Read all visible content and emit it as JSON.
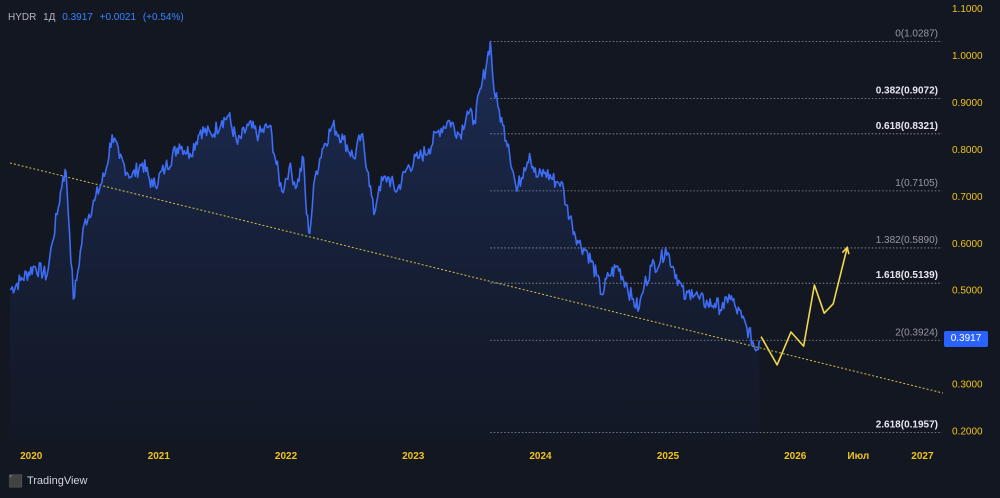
{
  "header": {
    "symbol": "HYDR",
    "interval": "1Д",
    "last": "0.3917",
    "change": "+0.0021",
    "change_pct": "(+0.54%)"
  },
  "price_tag": "0.3917",
  "brand": "TradingView",
  "colors": {
    "background": "#131722",
    "price_line": "#2962ff",
    "area_fill": "#1c2a4d",
    "axis_text": "#f0c419",
    "fib_line": "#9598a1",
    "trendline": "#d4c04a",
    "projection": "#f2d84a"
  },
  "chart_data": {
    "type": "line",
    "title": "",
    "xlabel": "",
    "ylabel": "",
    "x_ticks": [
      "2020",
      "2021",
      "2022",
      "2023",
      "2024",
      "2025",
      "2026",
      "Июл",
      "2027"
    ],
    "y_ticks": [
      "1.1000",
      "1.0000",
      "0.9000",
      "0.8000",
      "0.7000",
      "0.6000",
      "0.5000",
      "0.4000",
      "0.3000",
      "0.2000"
    ],
    "ylim": [
      0.18,
      1.1
    ],
    "xlim": [
      "2019-11-01",
      "2027-03-01"
    ],
    "grid": false,
    "series": [
      {
        "kind": "price",
        "points": [
          [
            "2019-11-01",
            0.5
          ],
          [
            "2019-12-01",
            0.52
          ],
          [
            "2020-01-10",
            0.55
          ],
          [
            "2020-02-15",
            0.53
          ],
          [
            "2020-03-01",
            0.6
          ],
          [
            "2020-03-15",
            0.66
          ],
          [
            "2020-04-01",
            0.74
          ],
          [
            "2020-04-10",
            0.75
          ],
          [
            "2020-04-20",
            0.62
          ],
          [
            "2020-05-01",
            0.48
          ],
          [
            "2020-05-10",
            0.52
          ],
          [
            "2020-06-01",
            0.64
          ],
          [
            "2020-07-01",
            0.69
          ],
          [
            "2020-08-01",
            0.75
          ],
          [
            "2020-08-20",
            0.83
          ],
          [
            "2020-09-10",
            0.78
          ],
          [
            "2020-10-15",
            0.74
          ],
          [
            "2020-11-15",
            0.77
          ],
          [
            "2020-12-15",
            0.72
          ],
          [
            "2021-01-20",
            0.76
          ],
          [
            "2021-03-01",
            0.81
          ],
          [
            "2021-04-01",
            0.79
          ],
          [
            "2021-05-01",
            0.84
          ],
          [
            "2021-06-01",
            0.83
          ],
          [
            "2021-07-01",
            0.86
          ],
          [
            "2021-07-20",
            0.87
          ],
          [
            "2021-08-15",
            0.81
          ],
          [
            "2021-09-15",
            0.85
          ],
          [
            "2021-10-15",
            0.83
          ],
          [
            "2021-11-15",
            0.85
          ],
          [
            "2021-12-01",
            0.78
          ],
          [
            "2021-12-20",
            0.71
          ],
          [
            "2022-01-10",
            0.76
          ],
          [
            "2022-02-01",
            0.72
          ],
          [
            "2022-02-20",
            0.78
          ],
          [
            "2022-03-01",
            0.66
          ],
          [
            "2022-03-10",
            0.62
          ],
          [
            "2022-03-25",
            0.74
          ],
          [
            "2022-04-15",
            0.8
          ],
          [
            "2022-05-15",
            0.85
          ],
          [
            "2022-06-15",
            0.82
          ],
          [
            "2022-07-15",
            0.78
          ],
          [
            "2022-08-05",
            0.83
          ],
          [
            "2022-08-25",
            0.75
          ],
          [
            "2022-09-10",
            0.66
          ],
          [
            "2022-09-25",
            0.72
          ],
          [
            "2022-10-20",
            0.74
          ],
          [
            "2022-11-15",
            0.71
          ],
          [
            "2022-12-15",
            0.76
          ],
          [
            "2023-01-15",
            0.78
          ],
          [
            "2023-02-15",
            0.8
          ],
          [
            "2023-03-15",
            0.84
          ],
          [
            "2023-04-15",
            0.86
          ],
          [
            "2023-05-15",
            0.83
          ],
          [
            "2023-06-05",
            0.88
          ],
          [
            "2023-06-25",
            0.86
          ],
          [
            "2023-07-15",
            0.93
          ],
          [
            "2023-08-01",
            0.99
          ],
          [
            "2023-08-10",
            1.0287
          ],
          [
            "2023-08-20",
            0.93
          ],
          [
            "2023-09-01",
            0.89
          ],
          [
            "2023-09-15",
            0.85
          ],
          [
            "2023-10-01",
            0.81
          ],
          [
            "2023-10-15",
            0.75
          ],
          [
            "2023-10-25",
            0.71
          ],
          [
            "2023-11-15",
            0.76
          ],
          [
            "2023-12-01",
            0.79
          ],
          [
            "2023-12-20",
            0.74
          ],
          [
            "2024-01-15",
            0.75
          ],
          [
            "2024-02-15",
            0.73
          ],
          [
            "2024-03-01",
            0.73
          ],
          [
            "2024-03-15",
            0.68
          ],
          [
            "2024-04-01",
            0.64
          ],
          [
            "2024-04-20",
            0.6
          ],
          [
            "2024-05-15",
            0.58
          ],
          [
            "2024-06-10",
            0.53
          ],
          [
            "2024-06-25",
            0.49
          ],
          [
            "2024-07-15",
            0.53
          ],
          [
            "2024-08-10",
            0.55
          ],
          [
            "2024-09-05",
            0.51
          ],
          [
            "2024-09-20",
            0.48
          ],
          [
            "2024-10-10",
            0.46
          ],
          [
            "2024-10-25",
            0.51
          ],
          [
            "2024-11-15",
            0.55
          ],
          [
            "2024-12-10",
            0.56
          ],
          [
            "2024-12-25",
            0.59
          ],
          [
            "2025-01-15",
            0.55
          ],
          [
            "2025-02-01",
            0.52
          ],
          [
            "2025-02-20",
            0.48
          ],
          [
            "2025-03-10",
            0.5
          ],
          [
            "2025-04-01",
            0.48
          ],
          [
            "2025-04-25",
            0.47
          ],
          [
            "2025-05-15",
            0.47
          ],
          [
            "2025-06-10",
            0.46
          ],
          [
            "2025-06-25",
            0.49
          ],
          [
            "2025-07-15",
            0.46
          ],
          [
            "2025-08-01",
            0.44
          ],
          [
            "2025-08-15",
            0.42
          ],
          [
            "2025-09-01",
            0.39
          ],
          [
            "2025-09-10",
            0.37
          ],
          [
            "2025-09-20",
            0.3917
          ]
        ]
      },
      {
        "kind": "projection",
        "points": [
          [
            "2025-09-25",
            0.4
          ],
          [
            "2025-11-10",
            0.34
          ],
          [
            "2025-12-20",
            0.41
          ],
          [
            "2026-01-25",
            0.38
          ],
          [
            "2026-02-25",
            0.51
          ],
          [
            "2026-03-25",
            0.45
          ],
          [
            "2026-04-20",
            0.47
          ],
          [
            "2026-05-30",
            0.59
          ]
        ]
      },
      {
        "kind": "trendline",
        "points": [
          [
            "2019-11-01",
            0.77
          ],
          [
            "2027-03-01",
            0.28
          ]
        ]
      }
    ],
    "fib_levels": [
      {
        "label": "0(1.0287)",
        "value": 1.0287,
        "bold": false
      },
      {
        "label": "0.382(0.9072)",
        "value": 0.9072,
        "bold": true
      },
      {
        "label": "0.618(0.8321)",
        "value": 0.8321,
        "bold": true
      },
      {
        "label": "1(0.7105)",
        "value": 0.7105,
        "bold": false
      },
      {
        "label": "1.382(0.5890)",
        "value": 0.589,
        "bold": false
      },
      {
        "label": "1.618(0.5139)",
        "value": 0.5139,
        "bold": true
      },
      {
        "label": "2(0.3924)",
        "value": 0.3924,
        "bold": false
      },
      {
        "label": "2.618(0.1957)",
        "value": 0.1957,
        "bold": true
      }
    ],
    "fib_start_date": "2023-08-10"
  }
}
